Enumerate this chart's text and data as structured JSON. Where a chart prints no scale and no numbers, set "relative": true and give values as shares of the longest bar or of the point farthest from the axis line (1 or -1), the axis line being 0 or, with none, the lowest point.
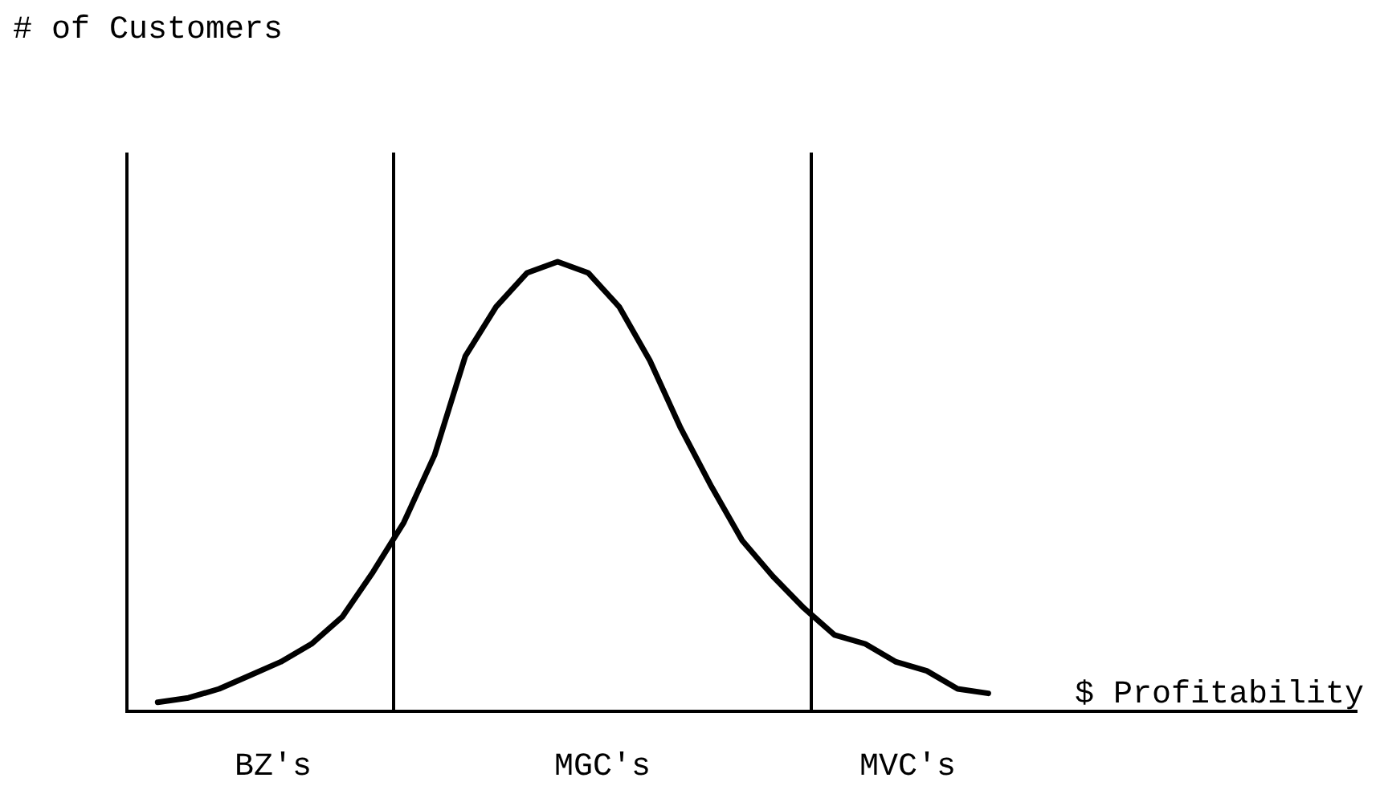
{
  "chart_data": {
    "type": "line",
    "relative": true,
    "xlabel": "$ Profitability",
    "tick_labels": false,
    "marker": "none",
    "line_style": "solid",
    "categories": [
      null,
      null,
      null,
      null,
      null,
      null,
      null,
      null,
      null,
      null,
      null,
      null,
      null,
      null,
      null,
      null,
      null,
      null,
      null,
      null,
      null,
      null,
      null,
      null,
      null,
      null,
      null,
      null,
      null,
      null,
      null,
      null,
      null,
      null,
      null,
      null,
      null,
      null,
      null,
      null,
      null
    ],
    "series": [
      {
        "color": "#000000",
        "values": [
          null,
          0.02,
          0.03,
          0.05,
          0.08,
          0.11,
          0.15,
          0.21,
          0.31,
          0.42,
          0.57,
          0.79,
          0.9,
          0.975,
          1.0,
          0.975,
          0.9,
          0.78,
          0.63,
          0.5,
          0.38,
          0.3,
          0.23,
          0.17,
          0.15,
          0.11,
          0.09,
          0.05,
          0.04,
          null,
          null,
          null,
          null,
          null,
          null,
          null,
          null,
          null,
          null,
          null,
          null
        ]
      }
    ],
    "annotations": [
      "# of Customers",
      "BZ's",
      "MGC's",
      "MVC's"
    ]
  }
}
